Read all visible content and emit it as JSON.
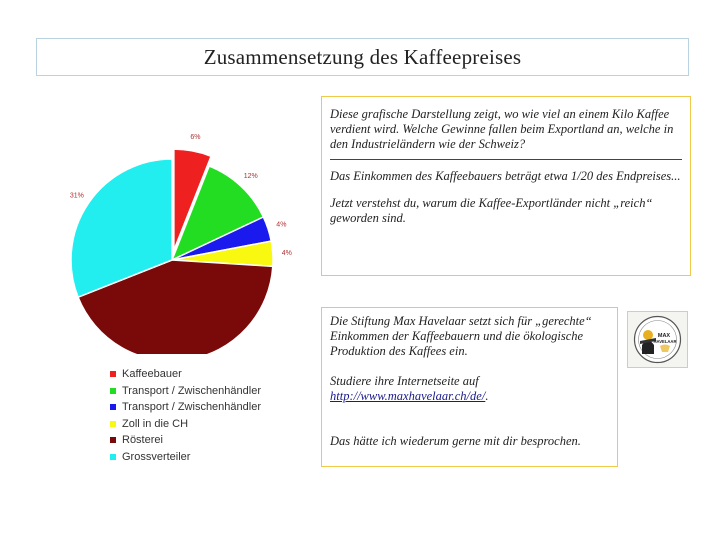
{
  "slide": {
    "title": "Zusammensetzung des Kaffeepreises"
  },
  "chart_data": {
    "type": "pie",
    "title": "",
    "slices": [
      {
        "label": "Kaffeebauer",
        "value": 6,
        "color": "#ee2020",
        "display": "6%"
      },
      {
        "label": "Transport / Zwischenhändler",
        "value": 12,
        "color": "#22dd22",
        "display": "12%"
      },
      {
        "label": "Transport / Zwischenhändler",
        "value": 4,
        "color": "#1a1aee",
        "display": "4%"
      },
      {
        "label": "Zoll in die CH",
        "value": 4,
        "color": "#f8f810",
        "display": "4%"
      },
      {
        "label": "Rösterei",
        "value": 43,
        "color": "#7a0a0a",
        "display": "..."
      },
      {
        "label": "Grossverteiler",
        "value": 31,
        "color": "#22eef0",
        "display": "31%"
      }
    ]
  },
  "legend": {
    "items": [
      {
        "label": "Kaffeebauer",
        "color": "#ee2020"
      },
      {
        "label": "Transport / Zwischenhändler",
        "color": "#22dd22"
      },
      {
        "label": "Transport / Zwischenhändler",
        "color": "#1a1aee"
      },
      {
        "label": "Zoll in die CH",
        "color": "#f8f810"
      },
      {
        "label": "Rösterei",
        "color": "#7a0a0a"
      },
      {
        "label": "Grossverteiler",
        "color": "#22eef0"
      }
    ]
  },
  "info_box": {
    "intro": "Diese grafische Darstellung zeigt, wo wie viel an einem Kilo Kaffee verdient wird. Welche Gewinne fallen beim Exportland an, welche in den Industrieländern wie der Schweiz?",
    "farmer_income": "Das Einkommen des Kaffeebauers beträgt etwa 1/20 des Endpreises...",
    "question": "Jetzt verstehst du, warum die Kaffee-Exportländer nicht „reich“ geworden sind."
  },
  "havelaar_box": {
    "text": "Die Stiftung Max Havelaar setzt sich für „gerechte“ Einkommen der Kaffeebauern und die ökologische Produktion des Kaffees ein.",
    "study_prefix": "Studiere ihre Internetseite auf",
    "link": "http://www.maxhavelaar.ch/de/",
    "link_suffix": ".",
    "closing": "Das hätte ich wiederum gerne mit dir besprochen."
  },
  "logo": {
    "line1": "MAX",
    "line2": "HAVELAAR"
  }
}
